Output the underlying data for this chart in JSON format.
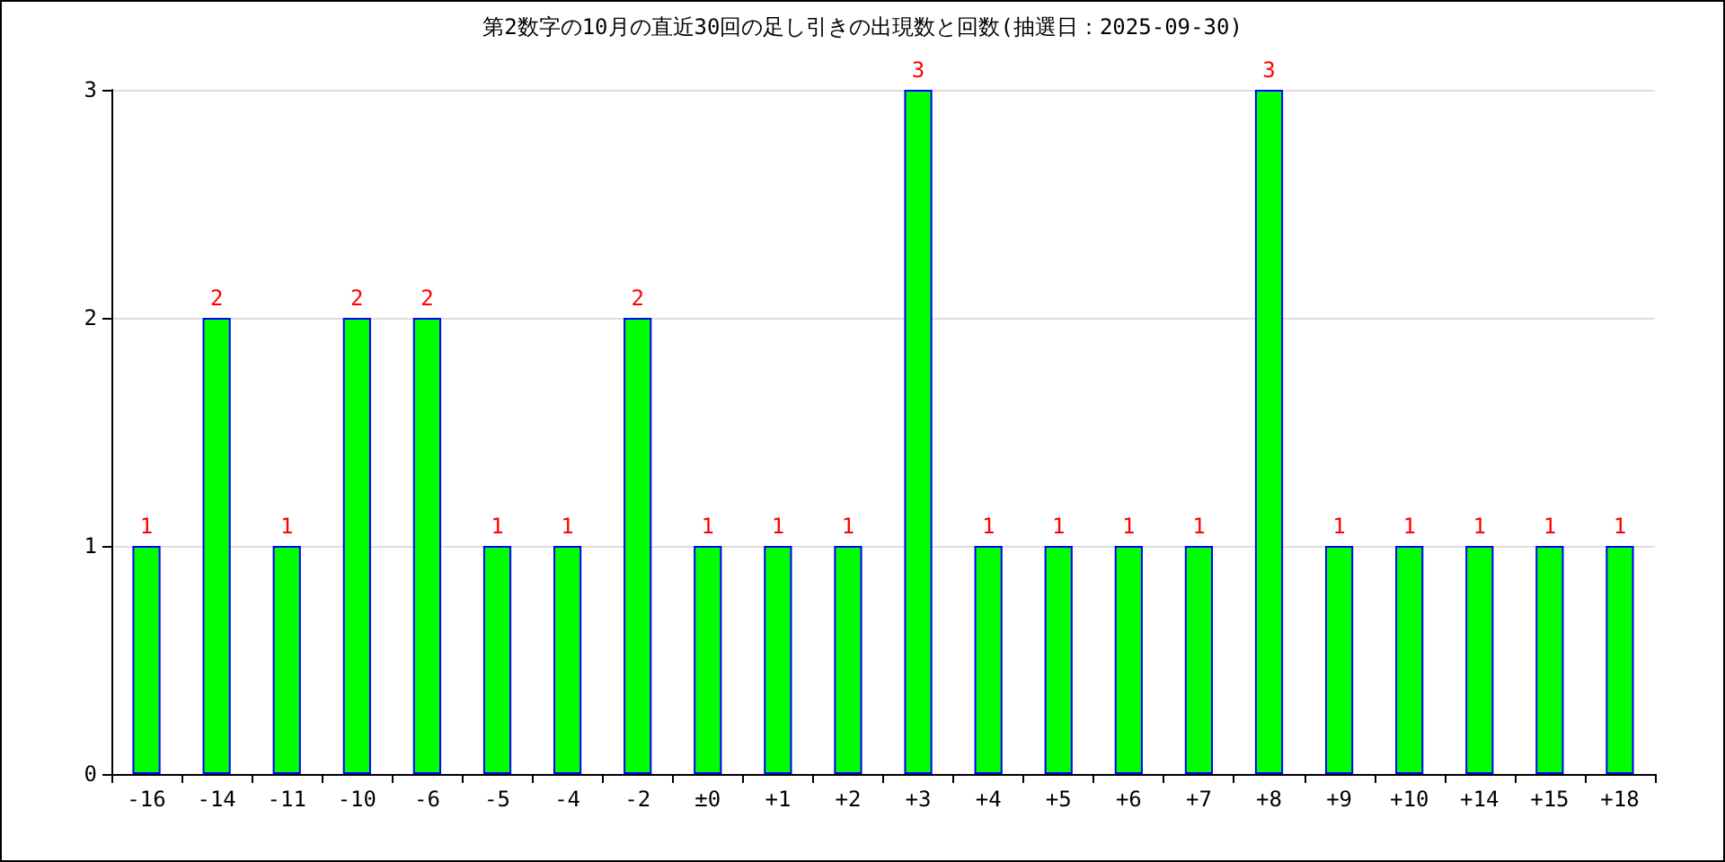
{
  "chart_data": {
    "type": "bar",
    "title": "第2数字の10月の直近30回の足し引きの出現数と回数(抽選日：2025-09-30)",
    "categories": [
      "-16",
      "-14",
      "-11",
      "-10",
      "-6",
      "-5",
      "-4",
      "-2",
      "±0",
      "+1",
      "+2",
      "+3",
      "+4",
      "+5",
      "+6",
      "+7",
      "+8",
      "+9",
      "+10",
      "+14",
      "+15",
      "+18"
    ],
    "values": [
      1,
      2,
      1,
      2,
      2,
      1,
      1,
      2,
      1,
      1,
      1,
      3,
      1,
      1,
      1,
      1,
      3,
      1,
      1,
      1,
      1,
      1
    ],
    "color": "#00ff00",
    "ylim": [
      0,
      3
    ],
    "yticks": [
      0,
      1,
      2,
      3
    ],
    "grid": "y",
    "data_labels": true
  }
}
